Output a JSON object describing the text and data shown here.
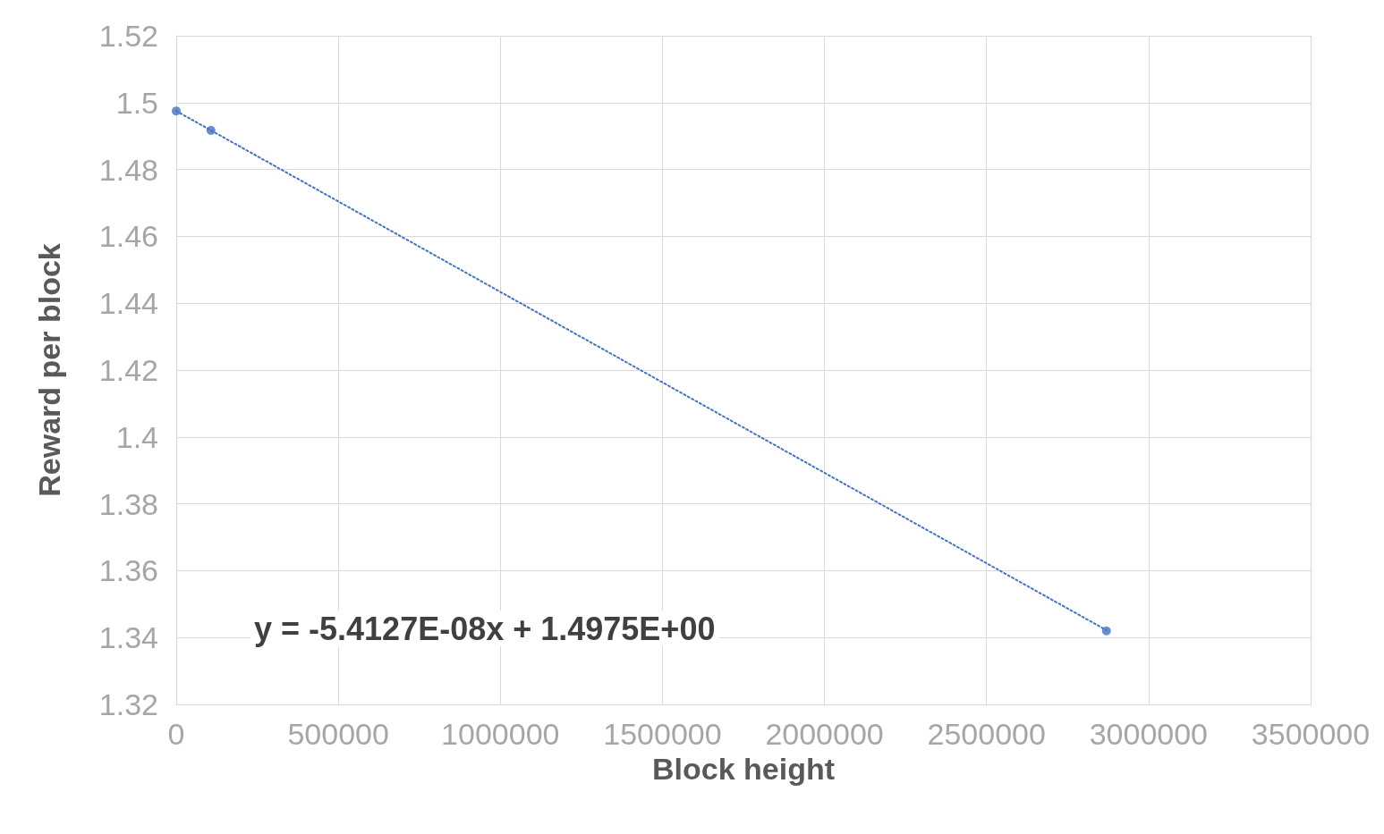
{
  "chart_data": {
    "type": "scatter",
    "xlabel": "Block height",
    "ylabel": "Reward per block",
    "annotations": [
      "y = -5.4127E-08x + 1.4975E+00"
    ],
    "series": [
      {
        "type": "scatter",
        "color": "#4472c4",
        "marker": "circle",
        "x": [
          0,
          107000,
          2870000
        ],
        "values": [
          1.4975,
          1.4917,
          1.342
        ]
      },
      {
        "type": "line",
        "color": "#4472c4",
        "marker": "none",
        "line_style": "dotted",
        "x": [
          0,
          2870000
        ],
        "values": [
          1.4975,
          1.3422
        ]
      }
    ],
    "xlim": [
      0,
      3500000
    ],
    "xticks": [
      0,
      500000,
      1000000,
      1500000,
      2000000,
      2500000,
      3000000,
      3500000
    ],
    "ylim": [
      1.32,
      1.52
    ],
    "yticks": [
      1.32,
      1.34,
      1.36,
      1.38,
      1.4,
      1.42,
      1.44,
      1.46,
      1.48,
      1.5,
      1.52
    ],
    "grid": true
  }
}
